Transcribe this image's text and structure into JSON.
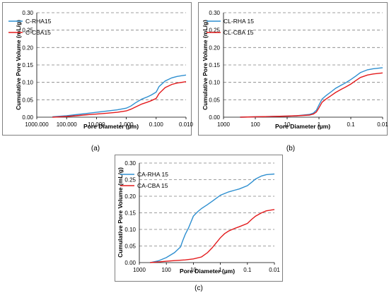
{
  "chart_data": [
    {
      "type": "line",
      "panel_label": "(a)",
      "xlabel": "Pore Diameter  (µm)",
      "ylabel": "Cumulative Pore Volume  (mL/g)",
      "x_scale": "log",
      "x_reversed": true,
      "xlim": [
        1000,
        0.01
      ],
      "ylim": [
        0,
        0.3
      ],
      "x_ticks": [
        1000,
        100,
        10,
        1,
        0.1,
        0.01
      ],
      "x_tick_labels": [
        "1000.000",
        "100.000",
        "10.000",
        "1.000",
        "0.100",
        "0.010"
      ],
      "y_ticks": [
        0,
        0.05,
        0.1,
        0.15,
        0.2,
        0.25,
        0.3
      ],
      "y_tick_labels": [
        "0.00",
        "0.05",
        "0.10",
        "0.15",
        "0.20",
        "0.25",
        "0.30"
      ],
      "grid": true,
      "legend": "top-left",
      "series": [
        {
          "name": "C-RHA15",
          "color": "#2e8fd0",
          "x": [
            300,
            100,
            50,
            20,
            10,
            5,
            2,
            1,
            0.7,
            0.5,
            0.3,
            0.2,
            0.15,
            0.1,
            0.08,
            0.05,
            0.03,
            0.02,
            0.01
          ],
          "y": [
            0.001,
            0.004,
            0.007,
            0.011,
            0.014,
            0.017,
            0.021,
            0.026,
            0.032,
            0.041,
            0.052,
            0.058,
            0.063,
            0.072,
            0.088,
            0.104,
            0.113,
            0.117,
            0.121
          ]
        },
        {
          "name": "C-CBA15",
          "color": "#e31a1c",
          "x": [
            300,
            100,
            50,
            20,
            10,
            5,
            2,
            1,
            0.7,
            0.5,
            0.3,
            0.2,
            0.15,
            0.1,
            0.08,
            0.05,
            0.03,
            0.02,
            0.01
          ],
          "y": [
            0.0,
            0.002,
            0.004,
            0.007,
            0.009,
            0.011,
            0.014,
            0.018,
            0.023,
            0.029,
            0.038,
            0.043,
            0.047,
            0.054,
            0.068,
            0.085,
            0.094,
            0.098,
            0.102
          ]
        }
      ]
    },
    {
      "type": "line",
      "panel_label": "(b)",
      "xlabel": "Pore Diameter  (µm)",
      "ylabel": "Cumulative Pore Volume  (mL/g)",
      "x_scale": "log",
      "x_reversed": true,
      "xlim": [
        1000,
        0.01
      ],
      "ylim": [
        0,
        0.3
      ],
      "x_ticks": [
        1000,
        100,
        10,
        1,
        0.1,
        0.01
      ],
      "x_tick_labels": [
        "1000",
        "100",
        "10",
        "1",
        "0.1",
        "0.01"
      ],
      "y_ticks": [
        0,
        0.05,
        0.1,
        0.15,
        0.2,
        0.25,
        0.3
      ],
      "y_tick_labels": [
        "0.00",
        "0.05",
        "0.10",
        "0.15",
        "0.20",
        "0.25",
        "0.30"
      ],
      "grid": true,
      "legend": "top-left",
      "series": [
        {
          "name": "CL-RHA 15",
          "color": "#2e8fd0",
          "x": [
            300,
            100,
            30,
            10,
            5,
            2,
            1.5,
            1.2,
            1,
            0.8,
            0.6,
            0.4,
            0.3,
            0.2,
            0.15,
            0.1,
            0.07,
            0.05,
            0.03,
            0.02,
            0.01
          ],
          "y": [
            0.0,
            0.001,
            0.002,
            0.003,
            0.004,
            0.008,
            0.012,
            0.02,
            0.035,
            0.052,
            0.062,
            0.074,
            0.083,
            0.092,
            0.098,
            0.108,
            0.118,
            0.128,
            0.136,
            0.139,
            0.142
          ]
        },
        {
          "name": "CL-CBA 15",
          "color": "#e31a1c",
          "x": [
            300,
            100,
            30,
            10,
            5,
            2,
            1.5,
            1.2,
            1,
            0.8,
            0.6,
            0.4,
            0.3,
            0.2,
            0.15,
            0.1,
            0.07,
            0.05,
            0.03,
            0.02,
            0.01
          ],
          "y": [
            0.0,
            0.001,
            0.002,
            0.003,
            0.004,
            0.006,
            0.009,
            0.015,
            0.027,
            0.043,
            0.052,
            0.063,
            0.071,
            0.08,
            0.086,
            0.095,
            0.105,
            0.114,
            0.121,
            0.124,
            0.127
          ]
        }
      ]
    },
    {
      "type": "line",
      "panel_label": "(c)",
      "xlabel": "Pore Diameter  (µm)",
      "ylabel": "Cumulative Pore Volume  (mL/g)",
      "x_scale": "log",
      "x_reversed": true,
      "xlim": [
        1000,
        0.01
      ],
      "ylim": [
        0,
        0.3
      ],
      "x_ticks": [
        1000,
        100,
        10,
        1,
        0.1,
        0.01
      ],
      "x_tick_labels": [
        "1000",
        "100",
        "10",
        "1",
        "0.1",
        "0.01"
      ],
      "y_ticks": [
        0,
        0.05,
        0.1,
        0.15,
        0.2,
        0.25,
        0.3
      ],
      "y_tick_labels": [
        "0.00",
        "0.05",
        "0.10",
        "0.15",
        "0.20",
        "0.25",
        "0.30"
      ],
      "grid": true,
      "legend": "top-left",
      "series": [
        {
          "name": "CA-RHA 15",
          "color": "#2e8fd0",
          "x": [
            400,
            200,
            100,
            50,
            30,
            25,
            20,
            15,
            10,
            7,
            5,
            3,
            2,
            1,
            0.5,
            0.3,
            0.2,
            0.1,
            0.07,
            0.05,
            0.03,
            0.02,
            0.01
          ],
          "y": [
            0.0,
            0.005,
            0.015,
            0.03,
            0.047,
            0.065,
            0.085,
            0.105,
            0.14,
            0.153,
            0.163,
            0.175,
            0.185,
            0.203,
            0.213,
            0.218,
            0.222,
            0.232,
            0.242,
            0.252,
            0.261,
            0.265,
            0.267
          ]
        },
        {
          "name": "CA-CBA 15",
          "color": "#e31a1c",
          "x": [
            400,
            200,
            100,
            50,
            20,
            10,
            5,
            3,
            2,
            1,
            0.7,
            0.5,
            0.3,
            0.2,
            0.1,
            0.07,
            0.05,
            0.03,
            0.02,
            0.01
          ],
          "y": [
            0.0,
            0.002,
            0.004,
            0.006,
            0.008,
            0.011,
            0.017,
            0.03,
            0.045,
            0.075,
            0.087,
            0.095,
            0.103,
            0.108,
            0.118,
            0.13,
            0.14,
            0.15,
            0.156,
            0.16
          ]
        }
      ]
    }
  ]
}
